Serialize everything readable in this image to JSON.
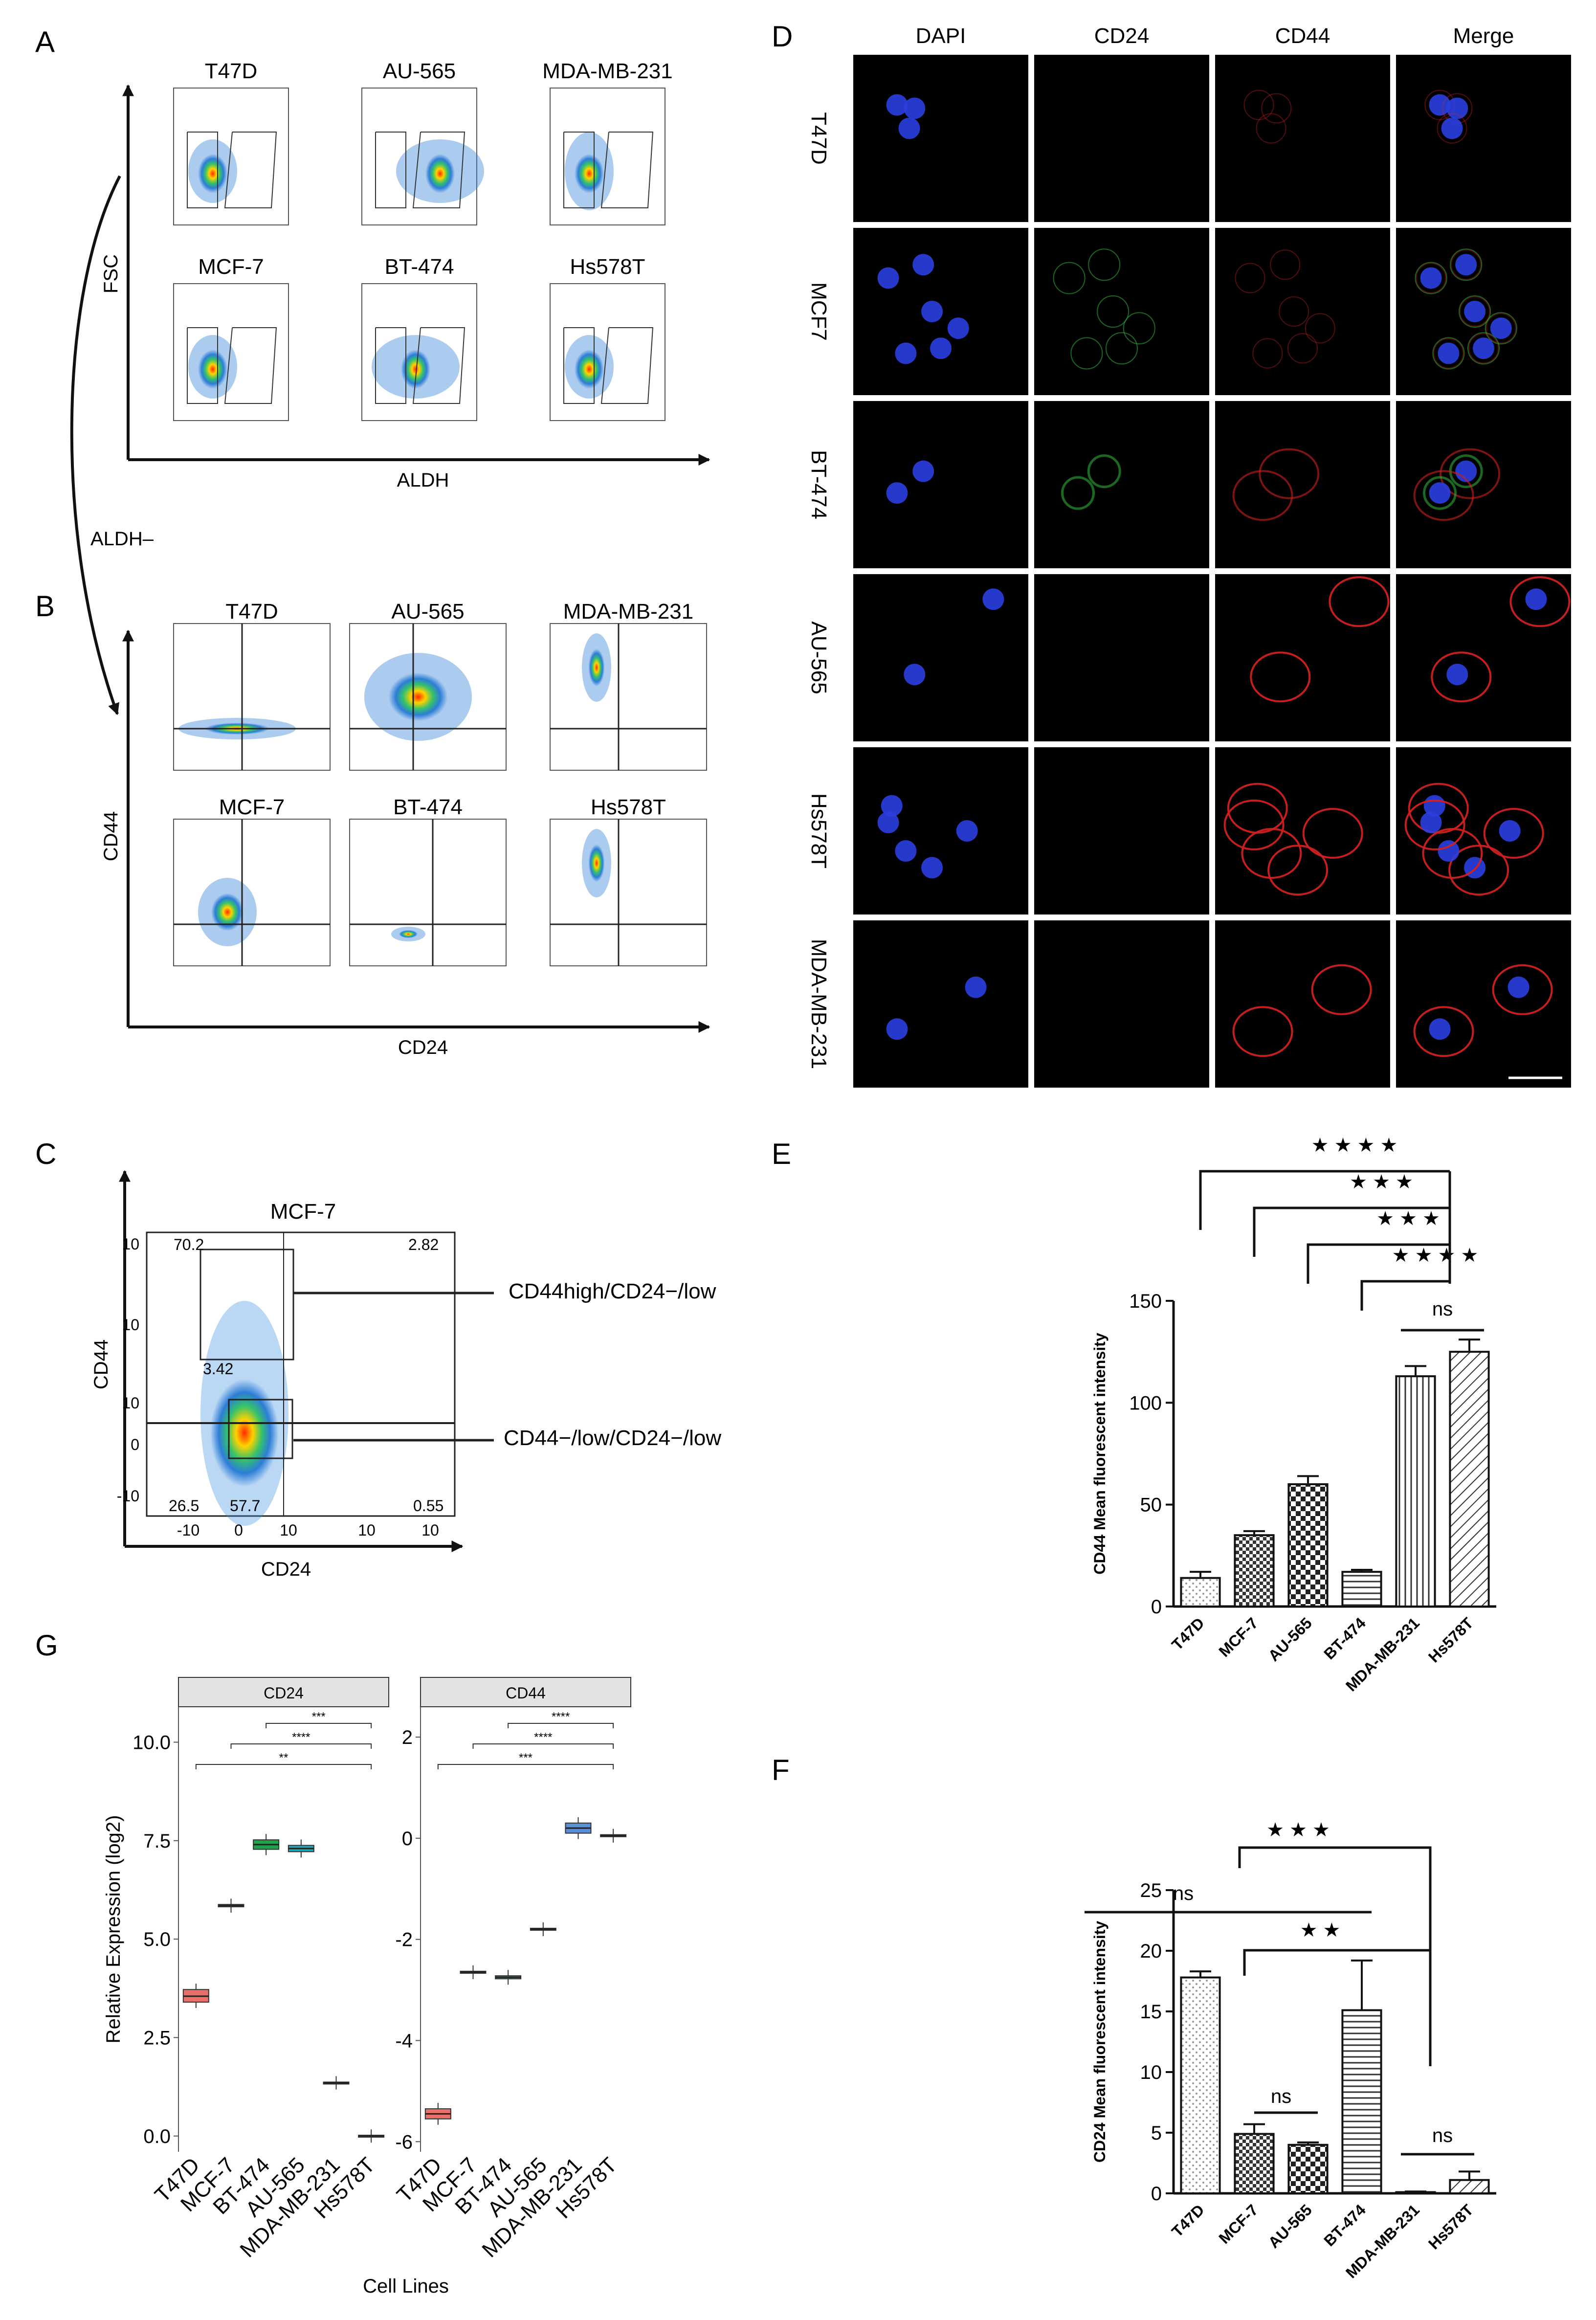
{
  "panels": {
    "A": {
      "label": "A",
      "cells": [
        "T47D",
        "AU-565",
        "MDA-MB-231",
        "MCF-7",
        "BT-474",
        "Hs578T"
      ],
      "y_axis": "FSC",
      "x_axis": "ALDH",
      "arrow_label": "ALDH–"
    },
    "B": {
      "label": "B",
      "cells": [
        "T47D",
        "AU-565",
        "MDA-MB-231",
        "MCF-7",
        "BT-474",
        "Hs578T"
      ],
      "y_axis": "CD44",
      "x_axis": "CD24"
    },
    "C": {
      "label": "C",
      "title": "MCF-7",
      "y_axis": "CD44",
      "x_axis": "CD24",
      "quadrants": [
        "70.2",
        "2.82",
        "3.42",
        "26.5",
        "57.7",
        "0.55"
      ],
      "gate_high": "CD44high/CD24−/low",
      "gate_low": "CD44−/low/CD24−/low",
      "y_ticks": [
        "10",
        "10",
        "10",
        "0",
        "-10"
      ],
      "x_ticks": [
        "-10",
        "0",
        "10",
        "10",
        "10"
      ]
    },
    "D": {
      "label": "D",
      "columns": [
        "DAPI",
        "CD24",
        "CD44",
        "Merge"
      ],
      "rows": [
        "T47D",
        "MCF7",
        "BT-474",
        "AU-565",
        "Hs578T",
        "MDA-MB-231"
      ]
    },
    "E": {
      "label": "E"
    },
    "F": {
      "label": "F"
    },
    "G": {
      "label": "G"
    }
  },
  "chart_data": [
    {
      "type": "bar",
      "panel": "E",
      "categories": [
        "T47D",
        "MCF-7",
        "AU-565",
        "BT-474",
        "MDA-MB-231",
        "Hs578T"
      ],
      "values": [
        14,
        35,
        60,
        17,
        113,
        125
      ],
      "errors": [
        3,
        2,
        4,
        1,
        5,
        6
      ],
      "ylabel": "CD44 Mean fluorescent intensity",
      "ylim": [
        0,
        150
      ],
      "yticks": [
        0,
        50,
        100,
        150
      ],
      "significance": [
        {
          "from": "T47D",
          "to": "MDA-MB-231",
          "label": "★ ★ ★ ★"
        },
        {
          "from": "MCF-7",
          "to": "MDA-MB-231",
          "label": "★ ★ ★"
        },
        {
          "from": "AU-565",
          "to": "MDA-MB-231",
          "label": "★ ★ ★"
        },
        {
          "from": "BT-474",
          "to": "MDA-MB-231",
          "label": "★ ★ ★ ★"
        },
        {
          "from": "MDA-MB-231",
          "to": "Hs578T",
          "label": "ns"
        }
      ]
    },
    {
      "type": "bar",
      "panel": "F",
      "categories": [
        "T47D",
        "MCF-7",
        "AU-565",
        "BT-474",
        "MDA-MB-231",
        "Hs578T"
      ],
      "values": [
        17.8,
        4.9,
        4.0,
        15.1,
        0.1,
        1.1
      ],
      "errors": [
        0.5,
        0.8,
        0.2,
        4.1,
        0.05,
        0.7
      ],
      "ylabel": "CD24 Mean fluorescent intensity",
      "ylim": [
        0,
        25
      ],
      "yticks": [
        0,
        5,
        10,
        15,
        20,
        25
      ],
      "significance": [
        {
          "from": "T47D",
          "to": "BT-474",
          "label": "ns"
        },
        {
          "from": "MCF-7",
          "to": "MDA-MB-231",
          "label": "★ ★ ★"
        },
        {
          "from": "MCF-7",
          "to": "MDA-MB-231",
          "label": "★ ★"
        },
        {
          "from": "MCF-7",
          "to": "AU-565",
          "label": "ns"
        },
        {
          "from": "MDA-MB-231",
          "to": "Hs578T",
          "label": "ns"
        }
      ]
    },
    {
      "type": "box",
      "panel": "G",
      "facet": "CD24",
      "categories": [
        "T47D",
        "MCF-7",
        "BT-474",
        "AU-565",
        "MDA-MB-231",
        "Hs578T"
      ],
      "medians": [
        3.55,
        5.85,
        7.4,
        7.3,
        1.35,
        0.0
      ],
      "q1": [
        3.4,
        5.82,
        7.28,
        7.22,
        1.33,
        -0.02
      ],
      "q3": [
        3.72,
        5.88,
        7.52,
        7.38,
        1.37,
        0.02
      ],
      "ylabel": "Relative Expression (log2)",
      "xlabel": "Cell Lines",
      "ylim": [
        -0.4,
        10.9
      ],
      "yticks": [
        0.0,
        2.5,
        5.0,
        7.5,
        10.0
      ],
      "significance": [
        {
          "from": "T47D",
          "to": "Hs578T",
          "label": "**"
        },
        {
          "from": "MCF-7",
          "to": "Hs578T",
          "label": "****"
        },
        {
          "from": "BT-474",
          "to": "Hs578T",
          "label": "***"
        }
      ]
    },
    {
      "type": "box",
      "panel": "G",
      "facet": "CD44",
      "categories": [
        "T47D",
        "MCF-7",
        "BT-474",
        "AU-565",
        "MDA-MB-231",
        "Hs578T"
      ],
      "medians": [
        -5.45,
        -2.65,
        -2.75,
        -1.8,
        0.2,
        0.05
      ],
      "q1": [
        -5.55,
        -2.67,
        -2.78,
        -1.82,
        0.1,
        0.03
      ],
      "q3": [
        -5.35,
        -2.63,
        -2.72,
        -1.78,
        0.3,
        0.07
      ],
      "ylim": [
        -6.2,
        2.6
      ],
      "yticks": [
        -6,
        -4,
        -2,
        0,
        2
      ],
      "significance": [
        {
          "from": "T47D",
          "to": "Hs578T",
          "label": "***"
        },
        {
          "from": "MCF-7",
          "to": "Hs578T",
          "label": "****"
        },
        {
          "from": "BT-474",
          "to": "Hs578T",
          "label": "****"
        }
      ]
    }
  ],
  "colors": {
    "G_boxes": [
      "#e8706a",
      "#b5a23a",
      "#1fa34a",
      "#24a8b7",
      "#5b8fd6",
      "#d66fc9"
    ],
    "merge_blue": "#2b3fe0",
    "cd44_red": "#d02020",
    "cd24_green": "#2fae3a"
  }
}
